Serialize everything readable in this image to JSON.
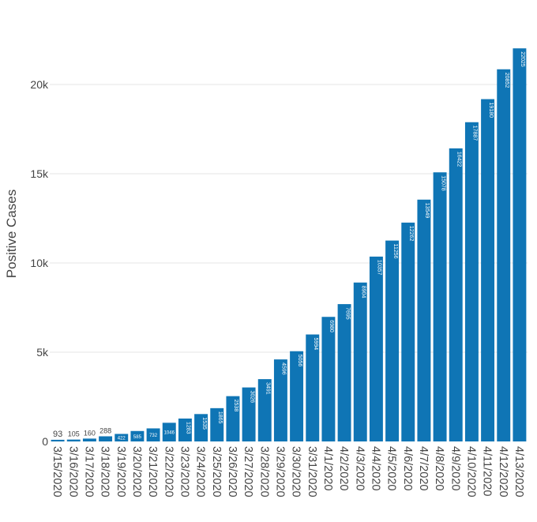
{
  "chart_data": {
    "type": "bar",
    "title": "",
    "xlabel": "",
    "ylabel": "Positive Cases",
    "ylim": [
      0,
      22500
    ],
    "y_ticks": [
      0,
      5000,
      10000,
      15000,
      20000
    ],
    "y_tick_labels": [
      "0",
      "5k",
      "10k",
      "15k",
      "20k"
    ],
    "grid": true,
    "legend": "none",
    "bar_color": "#0f75b5",
    "categories": [
      "3/15/2020",
      "3/16/2020",
      "3/17/2020",
      "3/18/2020",
      "3/19/2020",
      "3/20/2020",
      "3/21/2020",
      "3/22/2020",
      "3/23/2020",
      "3/24/2020",
      "3/25/2020",
      "3/26/2020",
      "3/27/2020",
      "3/28/2020",
      "3/29/2020",
      "3/30/2020",
      "3/31/2020",
      "4/1/2020",
      "4/2/2020",
      "4/3/2020",
      "4/4/2020",
      "4/5/2020",
      "4/6/2020",
      "4/7/2020",
      "4/8/2020",
      "4/9/2020",
      "4/10/2020",
      "4/11/2020",
      "4/12/2020",
      "4/13/2020"
    ],
    "values": [
      93,
      105,
      160,
      288,
      422,
      585,
      732,
      1046,
      1283,
      1535,
      1865,
      2538,
      3026,
      3491,
      4596,
      5056,
      5994,
      6980,
      7695,
      8904,
      10357,
      11256,
      12262,
      13549,
      15078,
      16422,
      17887,
      19180,
      20852,
      22025
    ],
    "data_labels": [
      "93",
      "105",
      "160",
      "288",
      "422",
      "585",
      "732",
      "1046",
      "1283",
      "1535",
      "1865",
      "2538",
      "3026",
      "3491",
      "4596",
      "5056",
      "5994",
      "6980",
      "7695",
      "8904",
      "10357",
      "11256",
      "12262",
      "13549",
      "15078",
      "16422",
      "17887",
      "19180",
      "20852",
      "22025"
    ]
  }
}
